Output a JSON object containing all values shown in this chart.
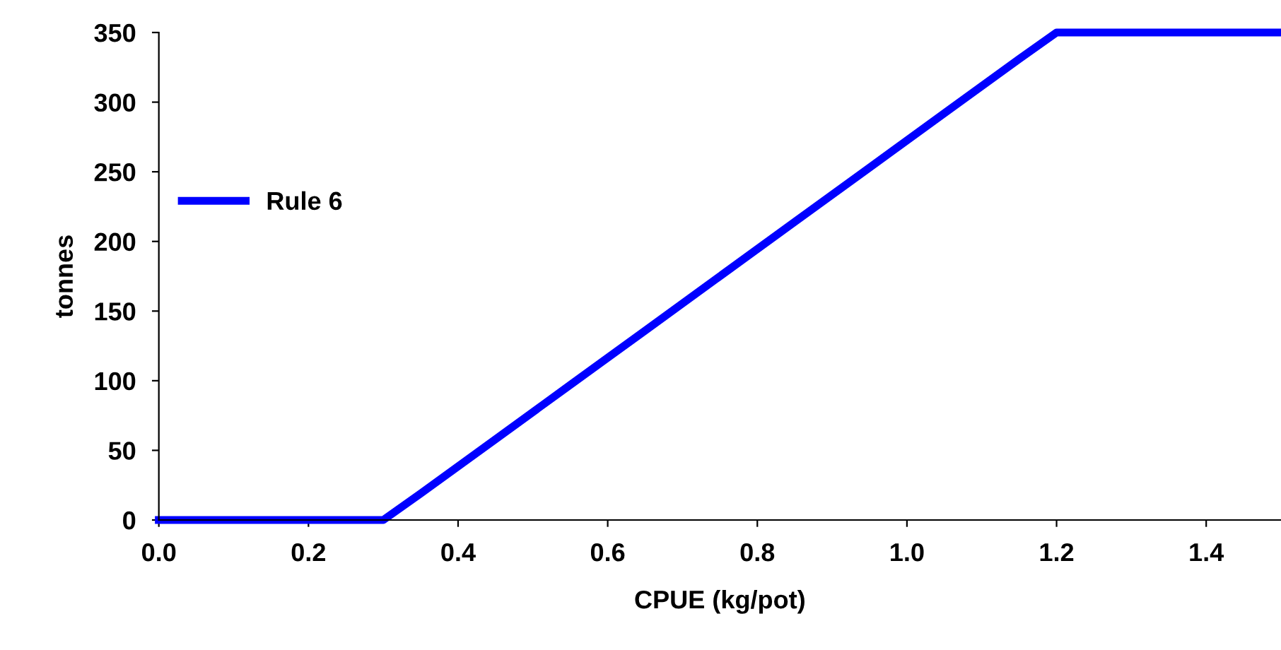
{
  "chart_data": {
    "type": "line",
    "xlabel": "CPUE (kg/pot)",
    "ylabel": "tonnes",
    "series": [
      {
        "name": "Rule 6",
        "color": "#0000ff",
        "x": [
          0.0,
          0.3,
          0.35,
          0.45,
          0.55,
          0.65,
          0.75,
          0.85,
          0.95,
          1.05,
          1.15,
          1.2,
          1.5
        ],
        "values": [
          0,
          0,
          19,
          58,
          97,
          136,
          175,
          214,
          253,
          292,
          331,
          350,
          350
        ]
      }
    ],
    "xlim": [
      0,
      1.5
    ],
    "xticks": [
      {
        "value": 0,
        "label": "0.0"
      },
      {
        "value": 0.2,
        "label": "0.2"
      },
      {
        "value": 0.4,
        "label": "0.4"
      },
      {
        "value": 0.6,
        "label": "0.6"
      },
      {
        "value": 0.8,
        "label": "0.8"
      },
      {
        "value": 1.0,
        "label": "1.0"
      },
      {
        "value": 1.2,
        "label": "1.2"
      },
      {
        "value": 1.4,
        "label": "1.4"
      }
    ],
    "ylim": [
      0,
      350
    ],
    "yticks": [
      0,
      50,
      100,
      150,
      200,
      250,
      300,
      350
    ],
    "legend": "left",
    "grid": false,
    "marker": "none",
    "line_style": "solid"
  }
}
